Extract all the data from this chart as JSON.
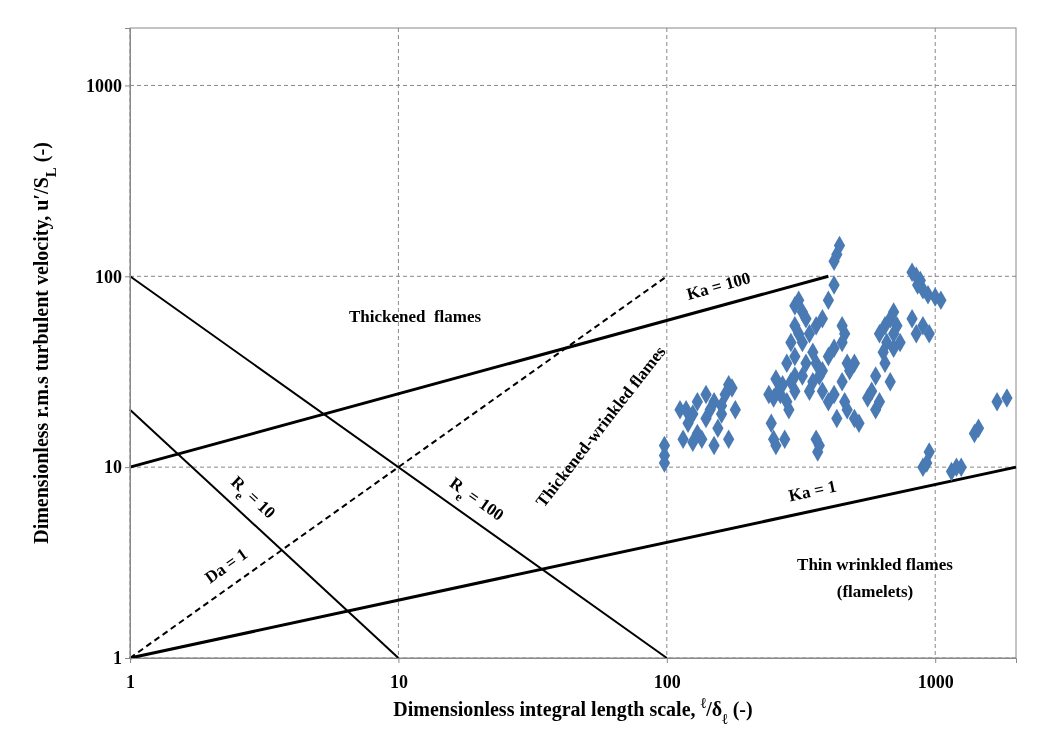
{
  "chart_data": {
    "type": "scatter",
    "xlabel": "Dimensionless integral length scale,  $^{ℓ}$/δ$_{ℓ}$ (-)",
    "ylabel": "Dimensionless r.m.s turbulent velocity, u′/S$_{L}$ (-)",
    "log": "xy",
    "xlim": [
      1,
      2000
    ],
    "ylim": [
      1,
      2000
    ],
    "xticks": [
      1,
      10,
      100,
      1000
    ],
    "yticks": [
      1,
      10,
      100,
      1000
    ],
    "grid": true,
    "series": [
      {
        "name": "Ka = 1",
        "type": "line",
        "color": "#000000",
        "line_style": "solid",
        "x": [
          1,
          2000
        ],
        "values": [
          1,
          10
        ]
      },
      {
        "name": "Ka = 100",
        "type": "line",
        "color": "#000000",
        "line_style": "solid",
        "x": [
          1,
          400
        ],
        "values": [
          10,
          100
        ]
      },
      {
        "name": "R$_{e}$ = 10",
        "type": "line",
        "color": "#000000",
        "line_style": "solid",
        "x": [
          1,
          10
        ],
        "values": [
          20,
          1
        ]
      },
      {
        "name": "R$_{e}$ = 100",
        "type": "line",
        "color": "#000000",
        "line_style": "solid",
        "x": [
          1,
          100
        ],
        "values": [
          100,
          1
        ]
      },
      {
        "name": "Da = 1",
        "type": "line",
        "color": "#000000",
        "line_style": "dashed",
        "x": [
          1,
          100
        ],
        "values": [
          1,
          100
        ]
      },
      {
        "color": "#4a7ab4",
        "marker": "diamond",
        "x": [
          98,
          98,
          98,
          120,
          125,
          130,
          118,
          135,
          140,
          150,
          145,
          160,
          165,
          170,
          175,
          112,
          125,
          155,
          170,
          160,
          140,
          130,
          150,
          180,
          115,
          240,
          250,
          260,
          270,
          280,
          255,
          245,
          250,
          255,
          265,
          290,
          300,
          285,
          275,
          300,
          310,
          320,
          330,
          300,
          310,
          290,
          320,
          340,
          360,
          380,
          400,
          420,
          430,
          440,
          420,
          350,
          330,
          360,
          370,
          380,
          400,
          420,
          450,
          460,
          380,
          350,
          340,
          320,
          400,
          420,
          450,
          480,
          500,
          460,
          470,
          430,
          500,
          520,
          360,
          365,
          370,
          300,
          300,
          280,
          450,
          470,
          620,
          650,
          680,
          700,
          720,
          660,
          700,
          740,
          640,
          600,
          580,
          620,
          600,
          560,
          700,
          650,
          680,
          820,
          850,
          880,
          900,
          860,
          940,
          1000,
          1050,
          900,
          850,
          820,
          950,
          950,
          930,
          900,
          1200,
          1150,
          1250,
          1400,
          1450,
          1700,
          1850
        ],
        "values": [
          13,
          11.5,
          10.5,
          17,
          19,
          15,
          20,
          14,
          18,
          22,
          20,
          21,
          24,
          27,
          26,
          20,
          13.5,
          16,
          14,
          19,
          24,
          22,
          13,
          20,
          14,
          24,
          23,
          25,
          27,
          22,
          29,
          17,
          14,
          13,
          24,
          28,
          25,
          20,
          14,
          70,
          75,
          65,
          60,
          55,
          50,
          45,
          45,
          50,
          55,
          60,
          75,
          90,
          130,
          145,
          120,
          40,
          35,
          35,
          30,
          32,
          38,
          42,
          45,
          50,
          25,
          28,
          25,
          30,
          22,
          24,
          28,
          32,
          35,
          22,
          20,
          18,
          18,
          17,
          14,
          12,
          13,
          38,
          30,
          35,
          55,
          35,
          50,
          55,
          60,
          65,
          55,
          45,
          42,
          45,
          40,
          30,
          25,
          22,
          20,
          23,
          50,
          35,
          28,
          105,
          100,
          95,
          85,
          90,
          80,
          78,
          75,
          55,
          50,
          60,
          50,
          12,
          10.5,
          10,
          10,
          9.5,
          10,
          15,
          16,
          22,
          23
        ]
      }
    ],
    "annotations": [
      "Thickened  flames",
      "Thickened-wrinkled flames",
      "Thin wrinkled flames",
      "(flamelets)"
    ]
  }
}
